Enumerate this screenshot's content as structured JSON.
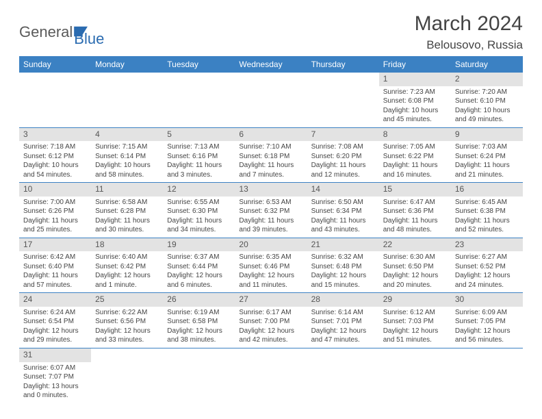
{
  "brand": {
    "part1": "General",
    "part2": "Blue"
  },
  "title": "March 2024",
  "location": "Belousovo, Russia",
  "styling": {
    "header_bg": "#3b81c3",
    "header_fg": "#ffffff",
    "daynum_bg": "#e3e3e3",
    "border_color": "#3b81c3",
    "body_fontsize": 10,
    "title_fontsize": 30,
    "location_fontsize": 17,
    "weekday_fontsize": 12
  },
  "weekdays": [
    "Sunday",
    "Monday",
    "Tuesday",
    "Wednesday",
    "Thursday",
    "Friday",
    "Saturday"
  ],
  "weeks": [
    [
      {
        "n": "",
        "sr": "",
        "ss": "",
        "dl1": "",
        "dl2": ""
      },
      {
        "n": "",
        "sr": "",
        "ss": "",
        "dl1": "",
        "dl2": ""
      },
      {
        "n": "",
        "sr": "",
        "ss": "",
        "dl1": "",
        "dl2": ""
      },
      {
        "n": "",
        "sr": "",
        "ss": "",
        "dl1": "",
        "dl2": ""
      },
      {
        "n": "",
        "sr": "",
        "ss": "",
        "dl1": "",
        "dl2": ""
      },
      {
        "n": "1",
        "sr": "Sunrise: 7:23 AM",
        "ss": "Sunset: 6:08 PM",
        "dl1": "Daylight: 10 hours",
        "dl2": "and 45 minutes."
      },
      {
        "n": "2",
        "sr": "Sunrise: 7:20 AM",
        "ss": "Sunset: 6:10 PM",
        "dl1": "Daylight: 10 hours",
        "dl2": "and 49 minutes."
      }
    ],
    [
      {
        "n": "3",
        "sr": "Sunrise: 7:18 AM",
        "ss": "Sunset: 6:12 PM",
        "dl1": "Daylight: 10 hours",
        "dl2": "and 54 minutes."
      },
      {
        "n": "4",
        "sr": "Sunrise: 7:15 AM",
        "ss": "Sunset: 6:14 PM",
        "dl1": "Daylight: 10 hours",
        "dl2": "and 58 minutes."
      },
      {
        "n": "5",
        "sr": "Sunrise: 7:13 AM",
        "ss": "Sunset: 6:16 PM",
        "dl1": "Daylight: 11 hours",
        "dl2": "and 3 minutes."
      },
      {
        "n": "6",
        "sr": "Sunrise: 7:10 AM",
        "ss": "Sunset: 6:18 PM",
        "dl1": "Daylight: 11 hours",
        "dl2": "and 7 minutes."
      },
      {
        "n": "7",
        "sr": "Sunrise: 7:08 AM",
        "ss": "Sunset: 6:20 PM",
        "dl1": "Daylight: 11 hours",
        "dl2": "and 12 minutes."
      },
      {
        "n": "8",
        "sr": "Sunrise: 7:05 AM",
        "ss": "Sunset: 6:22 PM",
        "dl1": "Daylight: 11 hours",
        "dl2": "and 16 minutes."
      },
      {
        "n": "9",
        "sr": "Sunrise: 7:03 AM",
        "ss": "Sunset: 6:24 PM",
        "dl1": "Daylight: 11 hours",
        "dl2": "and 21 minutes."
      }
    ],
    [
      {
        "n": "10",
        "sr": "Sunrise: 7:00 AM",
        "ss": "Sunset: 6:26 PM",
        "dl1": "Daylight: 11 hours",
        "dl2": "and 25 minutes."
      },
      {
        "n": "11",
        "sr": "Sunrise: 6:58 AM",
        "ss": "Sunset: 6:28 PM",
        "dl1": "Daylight: 11 hours",
        "dl2": "and 30 minutes."
      },
      {
        "n": "12",
        "sr": "Sunrise: 6:55 AM",
        "ss": "Sunset: 6:30 PM",
        "dl1": "Daylight: 11 hours",
        "dl2": "and 34 minutes."
      },
      {
        "n": "13",
        "sr": "Sunrise: 6:53 AM",
        "ss": "Sunset: 6:32 PM",
        "dl1": "Daylight: 11 hours",
        "dl2": "and 39 minutes."
      },
      {
        "n": "14",
        "sr": "Sunrise: 6:50 AM",
        "ss": "Sunset: 6:34 PM",
        "dl1": "Daylight: 11 hours",
        "dl2": "and 43 minutes."
      },
      {
        "n": "15",
        "sr": "Sunrise: 6:47 AM",
        "ss": "Sunset: 6:36 PM",
        "dl1": "Daylight: 11 hours",
        "dl2": "and 48 minutes."
      },
      {
        "n": "16",
        "sr": "Sunrise: 6:45 AM",
        "ss": "Sunset: 6:38 PM",
        "dl1": "Daylight: 11 hours",
        "dl2": "and 52 minutes."
      }
    ],
    [
      {
        "n": "17",
        "sr": "Sunrise: 6:42 AM",
        "ss": "Sunset: 6:40 PM",
        "dl1": "Daylight: 11 hours",
        "dl2": "and 57 minutes."
      },
      {
        "n": "18",
        "sr": "Sunrise: 6:40 AM",
        "ss": "Sunset: 6:42 PM",
        "dl1": "Daylight: 12 hours",
        "dl2": "and 1 minute."
      },
      {
        "n": "19",
        "sr": "Sunrise: 6:37 AM",
        "ss": "Sunset: 6:44 PM",
        "dl1": "Daylight: 12 hours",
        "dl2": "and 6 minutes."
      },
      {
        "n": "20",
        "sr": "Sunrise: 6:35 AM",
        "ss": "Sunset: 6:46 PM",
        "dl1": "Daylight: 12 hours",
        "dl2": "and 11 minutes."
      },
      {
        "n": "21",
        "sr": "Sunrise: 6:32 AM",
        "ss": "Sunset: 6:48 PM",
        "dl1": "Daylight: 12 hours",
        "dl2": "and 15 minutes."
      },
      {
        "n": "22",
        "sr": "Sunrise: 6:30 AM",
        "ss": "Sunset: 6:50 PM",
        "dl1": "Daylight: 12 hours",
        "dl2": "and 20 minutes."
      },
      {
        "n": "23",
        "sr": "Sunrise: 6:27 AM",
        "ss": "Sunset: 6:52 PM",
        "dl1": "Daylight: 12 hours",
        "dl2": "and 24 minutes."
      }
    ],
    [
      {
        "n": "24",
        "sr": "Sunrise: 6:24 AM",
        "ss": "Sunset: 6:54 PM",
        "dl1": "Daylight: 12 hours",
        "dl2": "and 29 minutes."
      },
      {
        "n": "25",
        "sr": "Sunrise: 6:22 AM",
        "ss": "Sunset: 6:56 PM",
        "dl1": "Daylight: 12 hours",
        "dl2": "and 33 minutes."
      },
      {
        "n": "26",
        "sr": "Sunrise: 6:19 AM",
        "ss": "Sunset: 6:58 PM",
        "dl1": "Daylight: 12 hours",
        "dl2": "and 38 minutes."
      },
      {
        "n": "27",
        "sr": "Sunrise: 6:17 AM",
        "ss": "Sunset: 7:00 PM",
        "dl1": "Daylight: 12 hours",
        "dl2": "and 42 minutes."
      },
      {
        "n": "28",
        "sr": "Sunrise: 6:14 AM",
        "ss": "Sunset: 7:01 PM",
        "dl1": "Daylight: 12 hours",
        "dl2": "and 47 minutes."
      },
      {
        "n": "29",
        "sr": "Sunrise: 6:12 AM",
        "ss": "Sunset: 7:03 PM",
        "dl1": "Daylight: 12 hours",
        "dl2": "and 51 minutes."
      },
      {
        "n": "30",
        "sr": "Sunrise: 6:09 AM",
        "ss": "Sunset: 7:05 PM",
        "dl1": "Daylight: 12 hours",
        "dl2": "and 56 minutes."
      }
    ],
    [
      {
        "n": "31",
        "sr": "Sunrise: 6:07 AM",
        "ss": "Sunset: 7:07 PM",
        "dl1": "Daylight: 13 hours",
        "dl2": "and 0 minutes."
      },
      {
        "n": "",
        "sr": "",
        "ss": "",
        "dl1": "",
        "dl2": ""
      },
      {
        "n": "",
        "sr": "",
        "ss": "",
        "dl1": "",
        "dl2": ""
      },
      {
        "n": "",
        "sr": "",
        "ss": "",
        "dl1": "",
        "dl2": ""
      },
      {
        "n": "",
        "sr": "",
        "ss": "",
        "dl1": "",
        "dl2": ""
      },
      {
        "n": "",
        "sr": "",
        "ss": "",
        "dl1": "",
        "dl2": ""
      },
      {
        "n": "",
        "sr": "",
        "ss": "",
        "dl1": "",
        "dl2": ""
      }
    ]
  ]
}
